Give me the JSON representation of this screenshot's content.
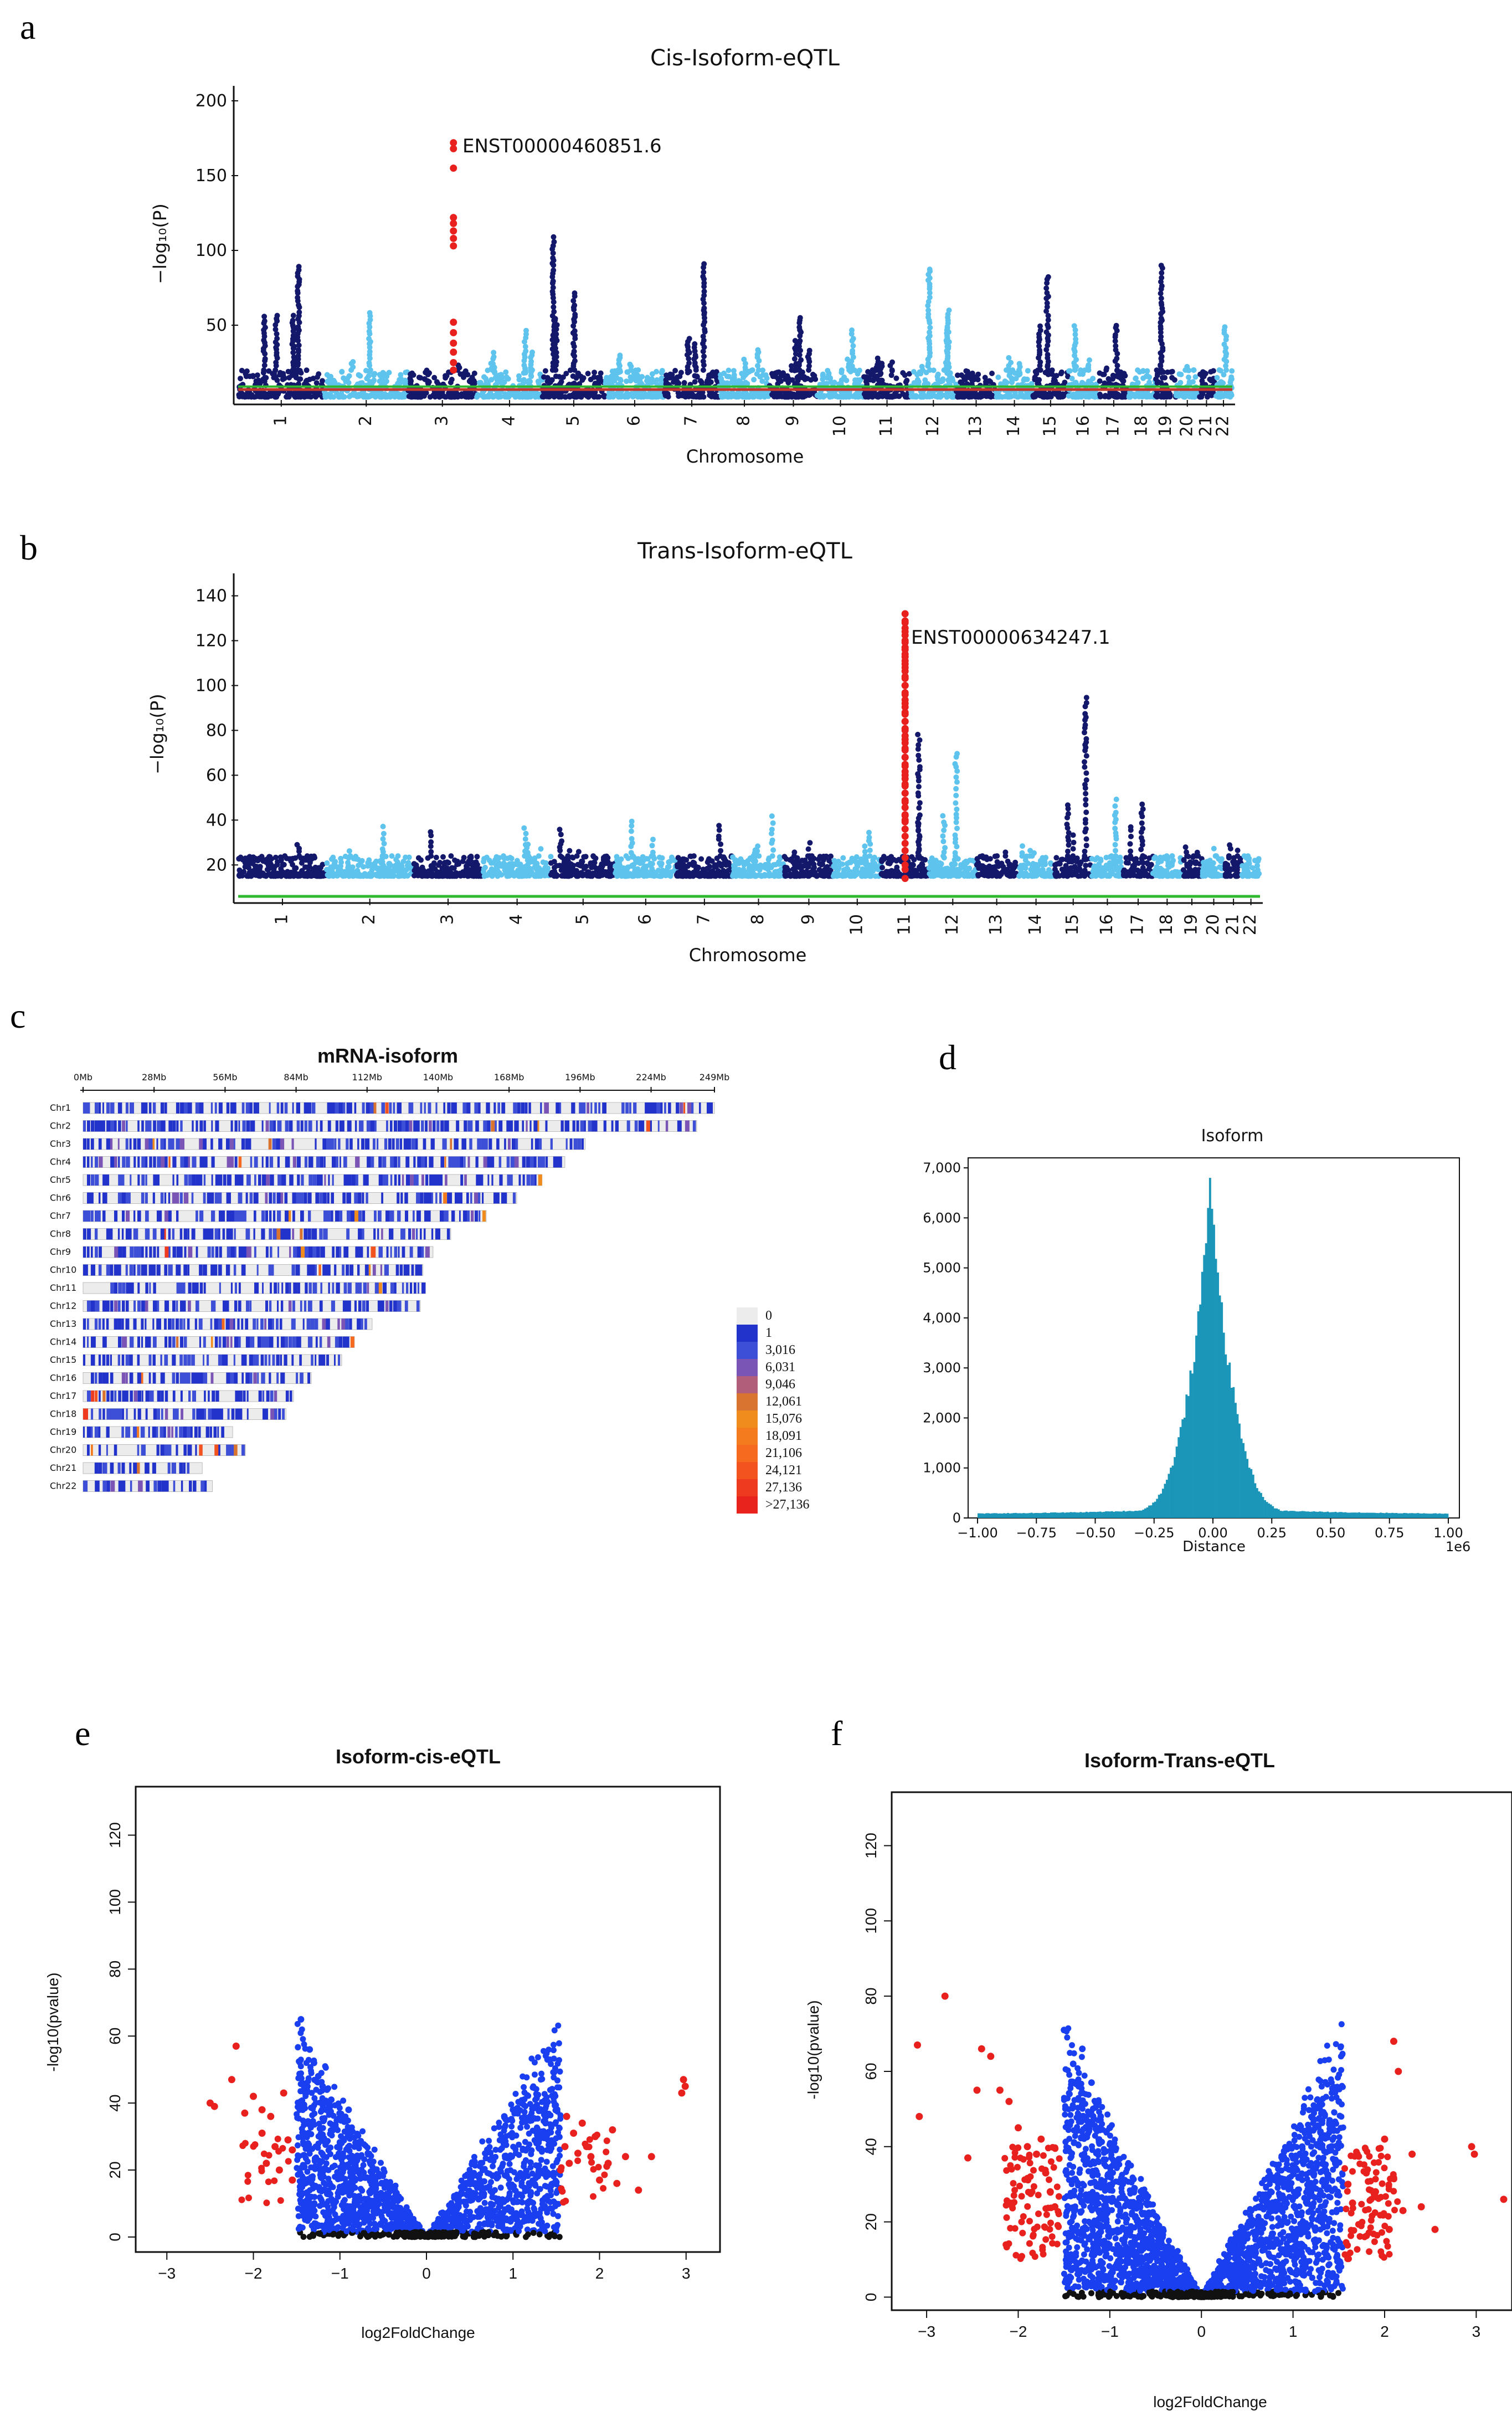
{
  "panel_letters": {
    "a": "a",
    "b": "b",
    "c": "c",
    "d": "d",
    "e": "e",
    "f": "f"
  },
  "chart_data": [
    {
      "id": "a",
      "type": "scatter",
      "title": "Cis-Isoform-eQTL",
      "xlabel": "Chromosome",
      "ylabel": "−log₁₀(P)",
      "ylim": [
        0,
        210
      ],
      "yticks": [
        50,
        100,
        150,
        200
      ],
      "chromosomes": [
        "1",
        "2",
        "3",
        "4",
        "5",
        "6",
        "7",
        "8",
        "9",
        "10",
        "11",
        "12",
        "13",
        "14",
        "15",
        "16",
        "17",
        "18",
        "19",
        "20",
        "21",
        "22"
      ],
      "colors": {
        "odd": "#14186b",
        "even": "#5ec4ee",
        "highlight": "#e8211e",
        "threshold_upper": "#2eb82e",
        "threshold_lower": "#c0392b"
      },
      "peak_max": [
        90,
        60,
        25,
        48,
        110,
        30,
        92,
        35,
        55,
        48,
        30,
        88,
        15,
        30,
        85,
        50,
        50,
        15,
        90,
        25,
        20,
        50
      ],
      "highlight": {
        "label": "ENST00000460851.6",
        "chromosome": "3",
        "values": [
          172,
          168,
          155,
          122,
          118,
          113,
          108,
          103,
          52,
          45,
          38,
          32,
          25,
          20
        ]
      }
    },
    {
      "id": "b",
      "type": "scatter",
      "title": "Trans-Isoform-eQTL",
      "xlabel": "Chromosome",
      "ylabel": "−log₁₀(P)",
      "ylim": [
        5,
        150
      ],
      "yticks": [
        20,
        40,
        60,
        80,
        100,
        120,
        140
      ],
      "chromosomes": [
        "1",
        "2",
        "3",
        "4",
        "5",
        "6",
        "7",
        "8",
        "9",
        "10",
        "11",
        "12",
        "13",
        "14",
        "15",
        "16",
        "17",
        "18",
        "19",
        "20",
        "21",
        "22"
      ],
      "colors": {
        "odd": "#14186b",
        "even": "#5ec4ee",
        "highlight": "#e8211e",
        "threshold": "#2eb82e"
      },
      "peak_max": [
        32,
        38,
        36,
        38,
        36,
        40,
        38,
        42,
        30,
        35,
        80,
        72,
        28,
        30,
        95,
        52,
        48,
        25,
        30,
        28,
        30,
        26
      ],
      "highlight": {
        "label": "ENST00000634247.1",
        "chromosome": "11",
        "values": [
          132,
          128,
          124,
          120,
          117,
          114,
          111,
          108,
          104,
          100,
          96,
          92,
          88,
          84,
          80,
          76,
          72,
          68,
          64,
          60,
          56,
          52,
          48,
          42,
          40,
          18,
          14
        ]
      }
    },
    {
      "id": "c",
      "type": "heatmap",
      "title": "mRNA-isoform",
      "axis_ticks": [
        "0Mb",
        "28Mb",
        "56Mb",
        "84Mb",
        "112Mb",
        "140Mb",
        "168Mb",
        "196Mb",
        "224Mb",
        "249Mb"
      ],
      "chromosomes": [
        "Chr1",
        "Chr2",
        "Chr3",
        "Chr4",
        "Chr5",
        "Chr6",
        "Chr7",
        "Chr8",
        "Chr9",
        "Chr10",
        "Chr11",
        "Chr12",
        "Chr13",
        "Chr14",
        "Chr15",
        "Chr16",
        "Chr17",
        "Chr18",
        "Chr19",
        "Chr20",
        "Chr21",
        "Chr22"
      ],
      "chromosome_lengths_mb": [
        249,
        242,
        198,
        190,
        181,
        171,
        159,
        145,
        138,
        134,
        135,
        133,
        114,
        107,
        102,
        90,
        83,
        80,
        59,
        64,
        47,
        51
      ],
      "legend": {
        "labels": [
          "0",
          "1",
          "3,016",
          "6,031",
          "9,046",
          "12,061",
          "15,076",
          "18,091",
          "21,106",
          "24,121",
          "27,136",
          ">27,136"
        ],
        "colors": [
          "#ececec",
          "#2233cc",
          "#3d4fd6",
          "#7a55b5",
          "#b05e7a",
          "#d8742f",
          "#f08c1e",
          "#f47c1e",
          "#f56a1f",
          "#f2531f",
          "#ee3b1f",
          "#e8231e"
        ]
      }
    },
    {
      "id": "d",
      "type": "bar",
      "title": "Isoform",
      "xlabel": "Distance",
      "x_multiplier": "1e6",
      "xlim": [
        -1.0,
        1.0
      ],
      "ylim": [
        0,
        7200
      ],
      "xticks": [
        "−1.00",
        "−0.75",
        "−0.50",
        "−0.25",
        "0.00",
        "0.25",
        "0.50",
        "0.75",
        "1.00"
      ],
      "yticks": [
        "0",
        "1,000",
        "2,000",
        "3,000",
        "4,000",
        "5,000",
        "6,000",
        "7,000"
      ],
      "color": "#1b95b8",
      "peak": {
        "x": -0.01,
        "y": 6800
      }
    },
    {
      "id": "e",
      "type": "scatter",
      "title": "Isoform-cis-eQTL",
      "xlabel": "log2FoldChange",
      "ylabel": "-log10(pvalue)",
      "xlim": [
        -3.2,
        3.2
      ],
      "ylim": [
        -2,
        132
      ],
      "xticks": [
        -3,
        -2,
        -1,
        0,
        1,
        2,
        3
      ],
      "yticks": [
        0,
        20,
        40,
        60,
        80,
        100,
        120
      ],
      "colors": {
        "sig": "#e8211e",
        "mid": "#1a3ff0",
        "ns": "#111111"
      },
      "red_points": [
        [
          -2.5,
          40
        ],
        [
          -2.45,
          39
        ],
        [
          -2.2,
          57
        ],
        [
          -2.25,
          47
        ],
        [
          -2.1,
          37
        ],
        [
          -2.0,
          42
        ],
        [
          -1.9,
          31
        ],
        [
          -1.85,
          22
        ],
        [
          -1.8,
          36
        ],
        [
          -1.75,
          27
        ],
        [
          -1.7,
          20
        ],
        [
          -1.65,
          43
        ],
        [
          -1.6,
          29
        ],
        [
          -1.55,
          26
        ],
        [
          -1.55,
          17
        ],
        [
          -1.9,
          38
        ],
        [
          1.55,
          20
        ],
        [
          1.6,
          27
        ],
        [
          1.62,
          36
        ],
        [
          1.65,
          22
        ],
        [
          1.7,
          31
        ],
        [
          1.75,
          25
        ],
        [
          1.8,
          34
        ],
        [
          1.85,
          27
        ],
        [
          1.9,
          24
        ],
        [
          1.95,
          30
        ],
        [
          2.0,
          17
        ],
        [
          2.1,
          22
        ],
        [
          2.15,
          32
        ],
        [
          2.2,
          16
        ],
        [
          2.3,
          24
        ],
        [
          2.45,
          14
        ],
        [
          2.6,
          24
        ],
        [
          2.95,
          43
        ],
        [
          2.97,
          47
        ],
        [
          2.99,
          45
        ]
      ],
      "blue_points": [
        [
          -1.45,
          65
        ],
        [
          -1.35,
          56
        ],
        [
          -1.3,
          52
        ],
        [
          -1.25,
          48
        ],
        [
          -1.2,
          45
        ],
        [
          -1.15,
          44
        ],
        [
          1.4,
          53
        ],
        [
          1.1,
          40
        ],
        [
          1.2,
          36
        ],
        [
          1.0,
          38
        ],
        [
          0.9,
          36
        ],
        [
          -1.1,
          41
        ],
        [
          -0.9,
          38
        ]
      ]
    },
    {
      "id": "f",
      "type": "scatter",
      "title": "Isoform-Trans-eQTL",
      "xlabel": "log2FoldChange",
      "ylabel": "-log10(pvalue)",
      "xlim": [
        -3.2,
        3.3
      ],
      "ylim": [
        -2,
        132
      ],
      "xticks": [
        -3,
        -2,
        -1,
        0,
        1,
        2,
        3
      ],
      "yticks": [
        0,
        20,
        40,
        60,
        80,
        100,
        120
      ],
      "colors": {
        "sig": "#e8211e",
        "mid": "#1a3ff0",
        "ns": "#111111"
      },
      "red_points": [
        [
          -3.1,
          67
        ],
        [
          -3.08,
          48
        ],
        [
          -2.8,
          80
        ],
        [
          -2.55,
          37
        ],
        [
          -2.45,
          55
        ],
        [
          -2.4,
          66
        ],
        [
          -2.3,
          64
        ],
        [
          -2.2,
          55
        ],
        [
          -2.1,
          52
        ],
        [
          -2.0,
          45
        ],
        [
          -1.9,
          40
        ],
        [
          -1.8,
          38
        ],
        [
          -1.75,
          42
        ],
        [
          -1.7,
          33
        ],
        [
          -1.65,
          28
        ],
        [
          -1.6,
          24
        ],
        [
          1.6,
          30
        ],
        [
          1.65,
          25
        ],
        [
          1.7,
          38
        ],
        [
          1.8,
          33
        ],
        [
          1.9,
          28
        ],
        [
          2.0,
          42
        ],
        [
          2.05,
          18
        ],
        [
          2.1,
          68
        ],
        [
          2.15,
          60
        ],
        [
          2.2,
          23
        ],
        [
          2.3,
          38
        ],
        [
          2.4,
          24
        ],
        [
          2.55,
          18
        ],
        [
          2.95,
          40
        ],
        [
          2.98,
          38
        ],
        [
          3.3,
          26
        ]
      ],
      "blue_points": [
        [
          -1.5,
          71
        ],
        [
          -1.4,
          62
        ],
        [
          -1.3,
          66
        ],
        [
          -1.2,
          57
        ],
        [
          -1.1,
          48
        ],
        [
          -1.0,
          45
        ],
        [
          1.5,
          52
        ],
        [
          1.4,
          47
        ],
        [
          1.3,
          44
        ],
        [
          1.1,
          40
        ]
      ]
    }
  ]
}
